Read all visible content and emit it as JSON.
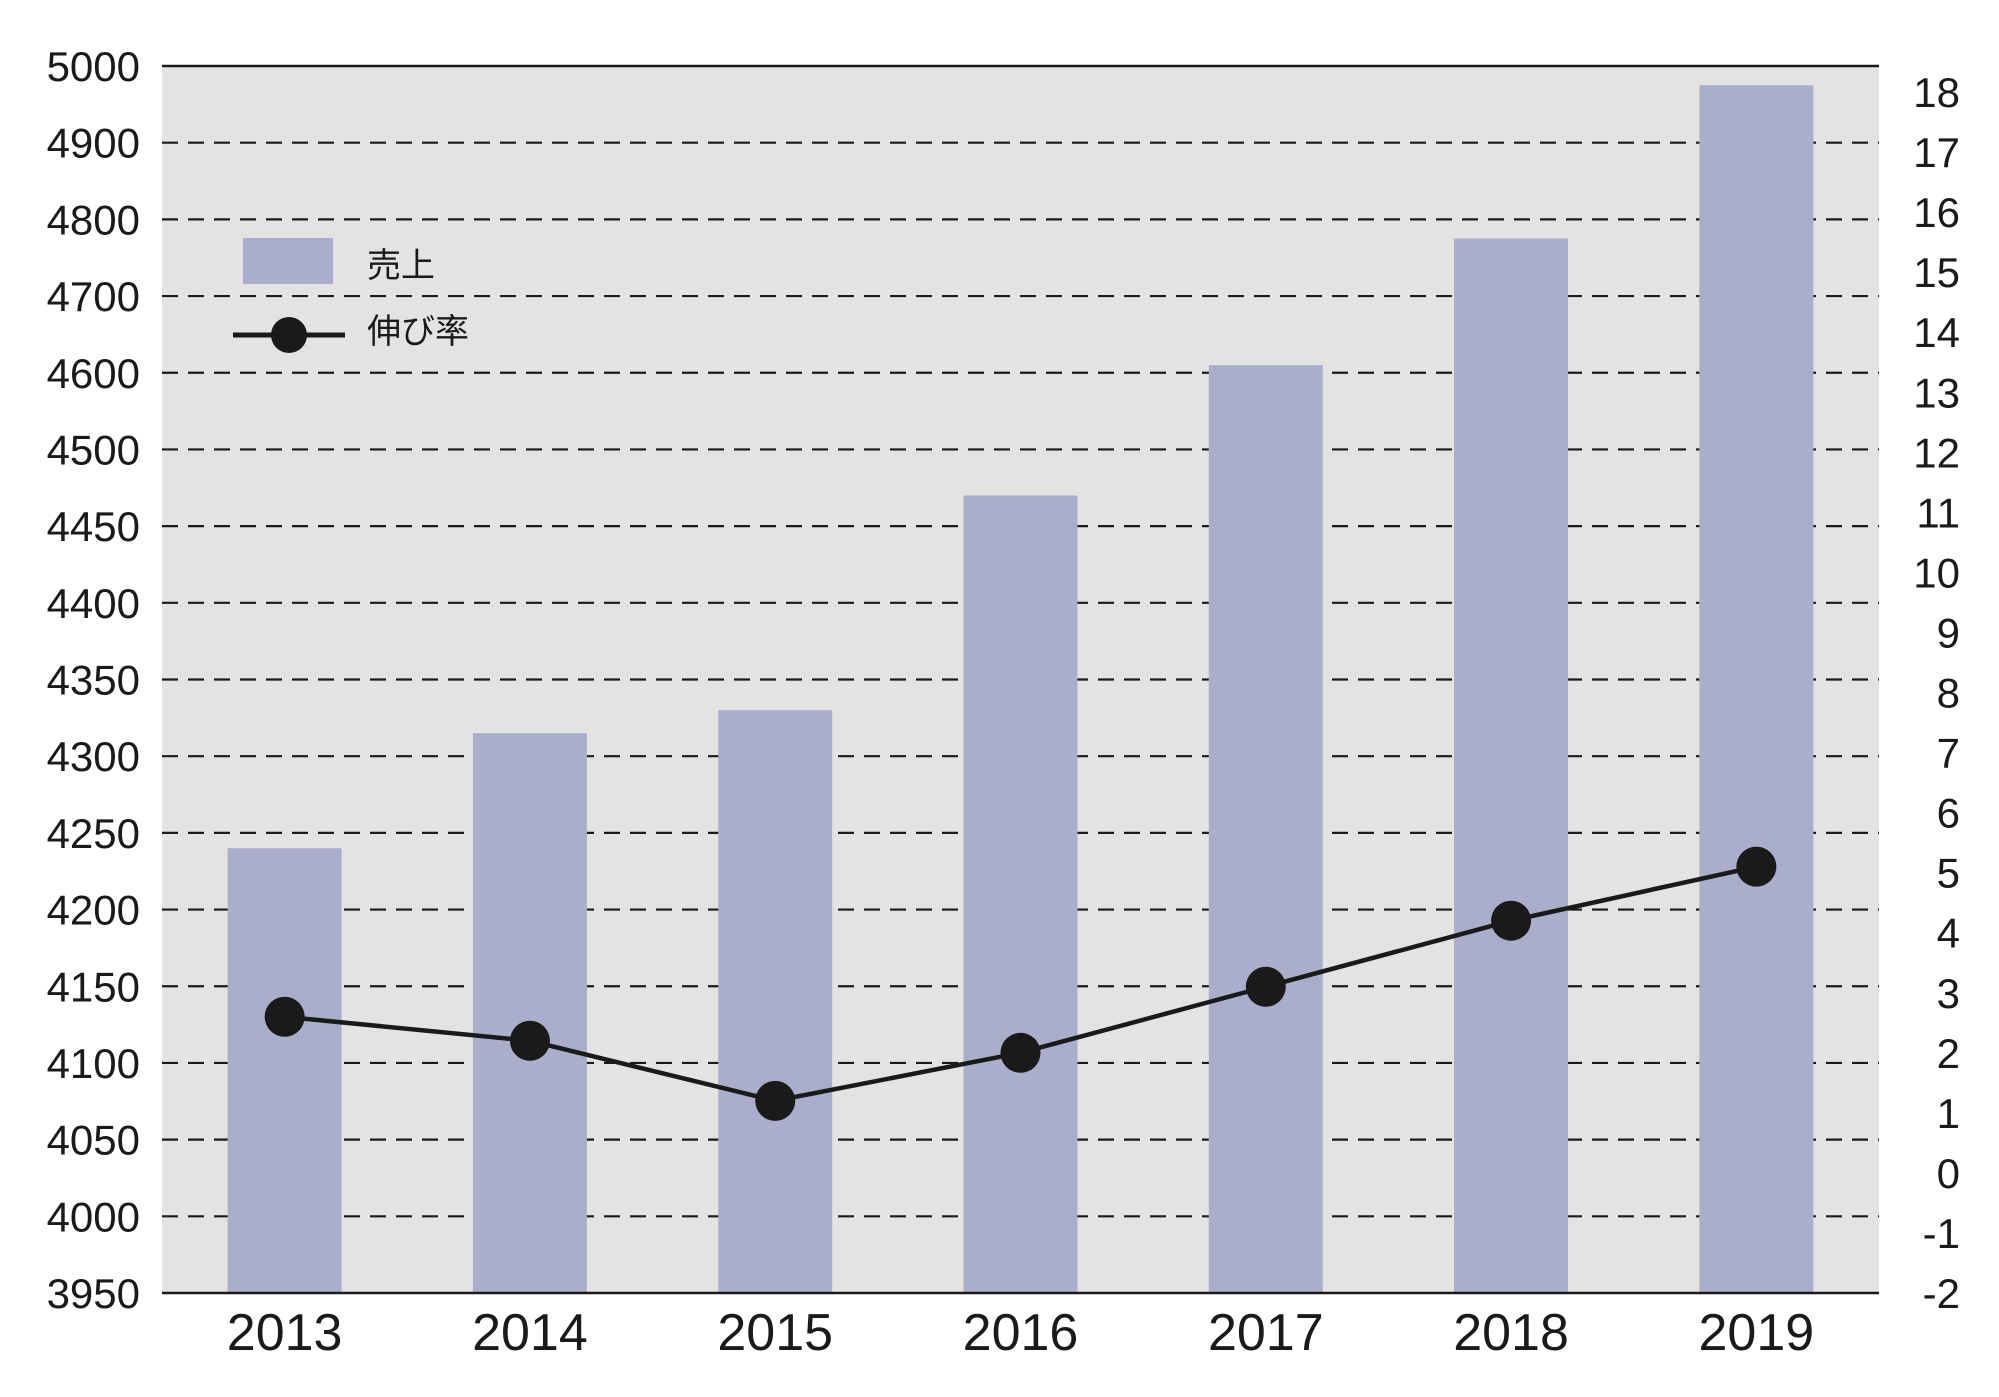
{
  "chart_data": {
    "type": "bar",
    "categories": [
      "2013",
      "2014",
      "2015",
      "2016",
      "2017",
      "2018",
      "2019"
    ],
    "series": [
      {
        "name": "売上",
        "type": "bar",
        "axis": "left",
        "color": "#abaecb",
        "values": [
          4240,
          4315,
          4330,
          4470,
          4610,
          4775,
          4975
        ]
      },
      {
        "name": "伸び率",
        "type": "line",
        "axis": "right",
        "color": "#1a1a1a",
        "values": [
          2.6,
          2.2,
          1.2,
          2.0,
          3.1,
          4.2,
          5.1
        ]
      }
    ],
    "left_axis": {
      "ticks": [
        "3950",
        "4000",
        "4050",
        "4100",
        "4150",
        "4200",
        "4250",
        "4300",
        "4350",
        "4400",
        "4450",
        "4500",
        "4600",
        "4700",
        "4800",
        "4900",
        "5000"
      ]
    },
    "right_axis": {
      "ylim": [
        -2,
        18
      ],
      "ticks": [
        "-2",
        "-1",
        "0",
        "1",
        "2",
        "3",
        "4",
        "5",
        "6",
        "7",
        "8",
        "9",
        "10",
        "11",
        "12",
        "13",
        "14",
        "15",
        "16",
        "17",
        "18"
      ]
    },
    "grid": "dashed-horizontal",
    "legend_position": "top-left",
    "plot_background": "#e3e3e3"
  }
}
